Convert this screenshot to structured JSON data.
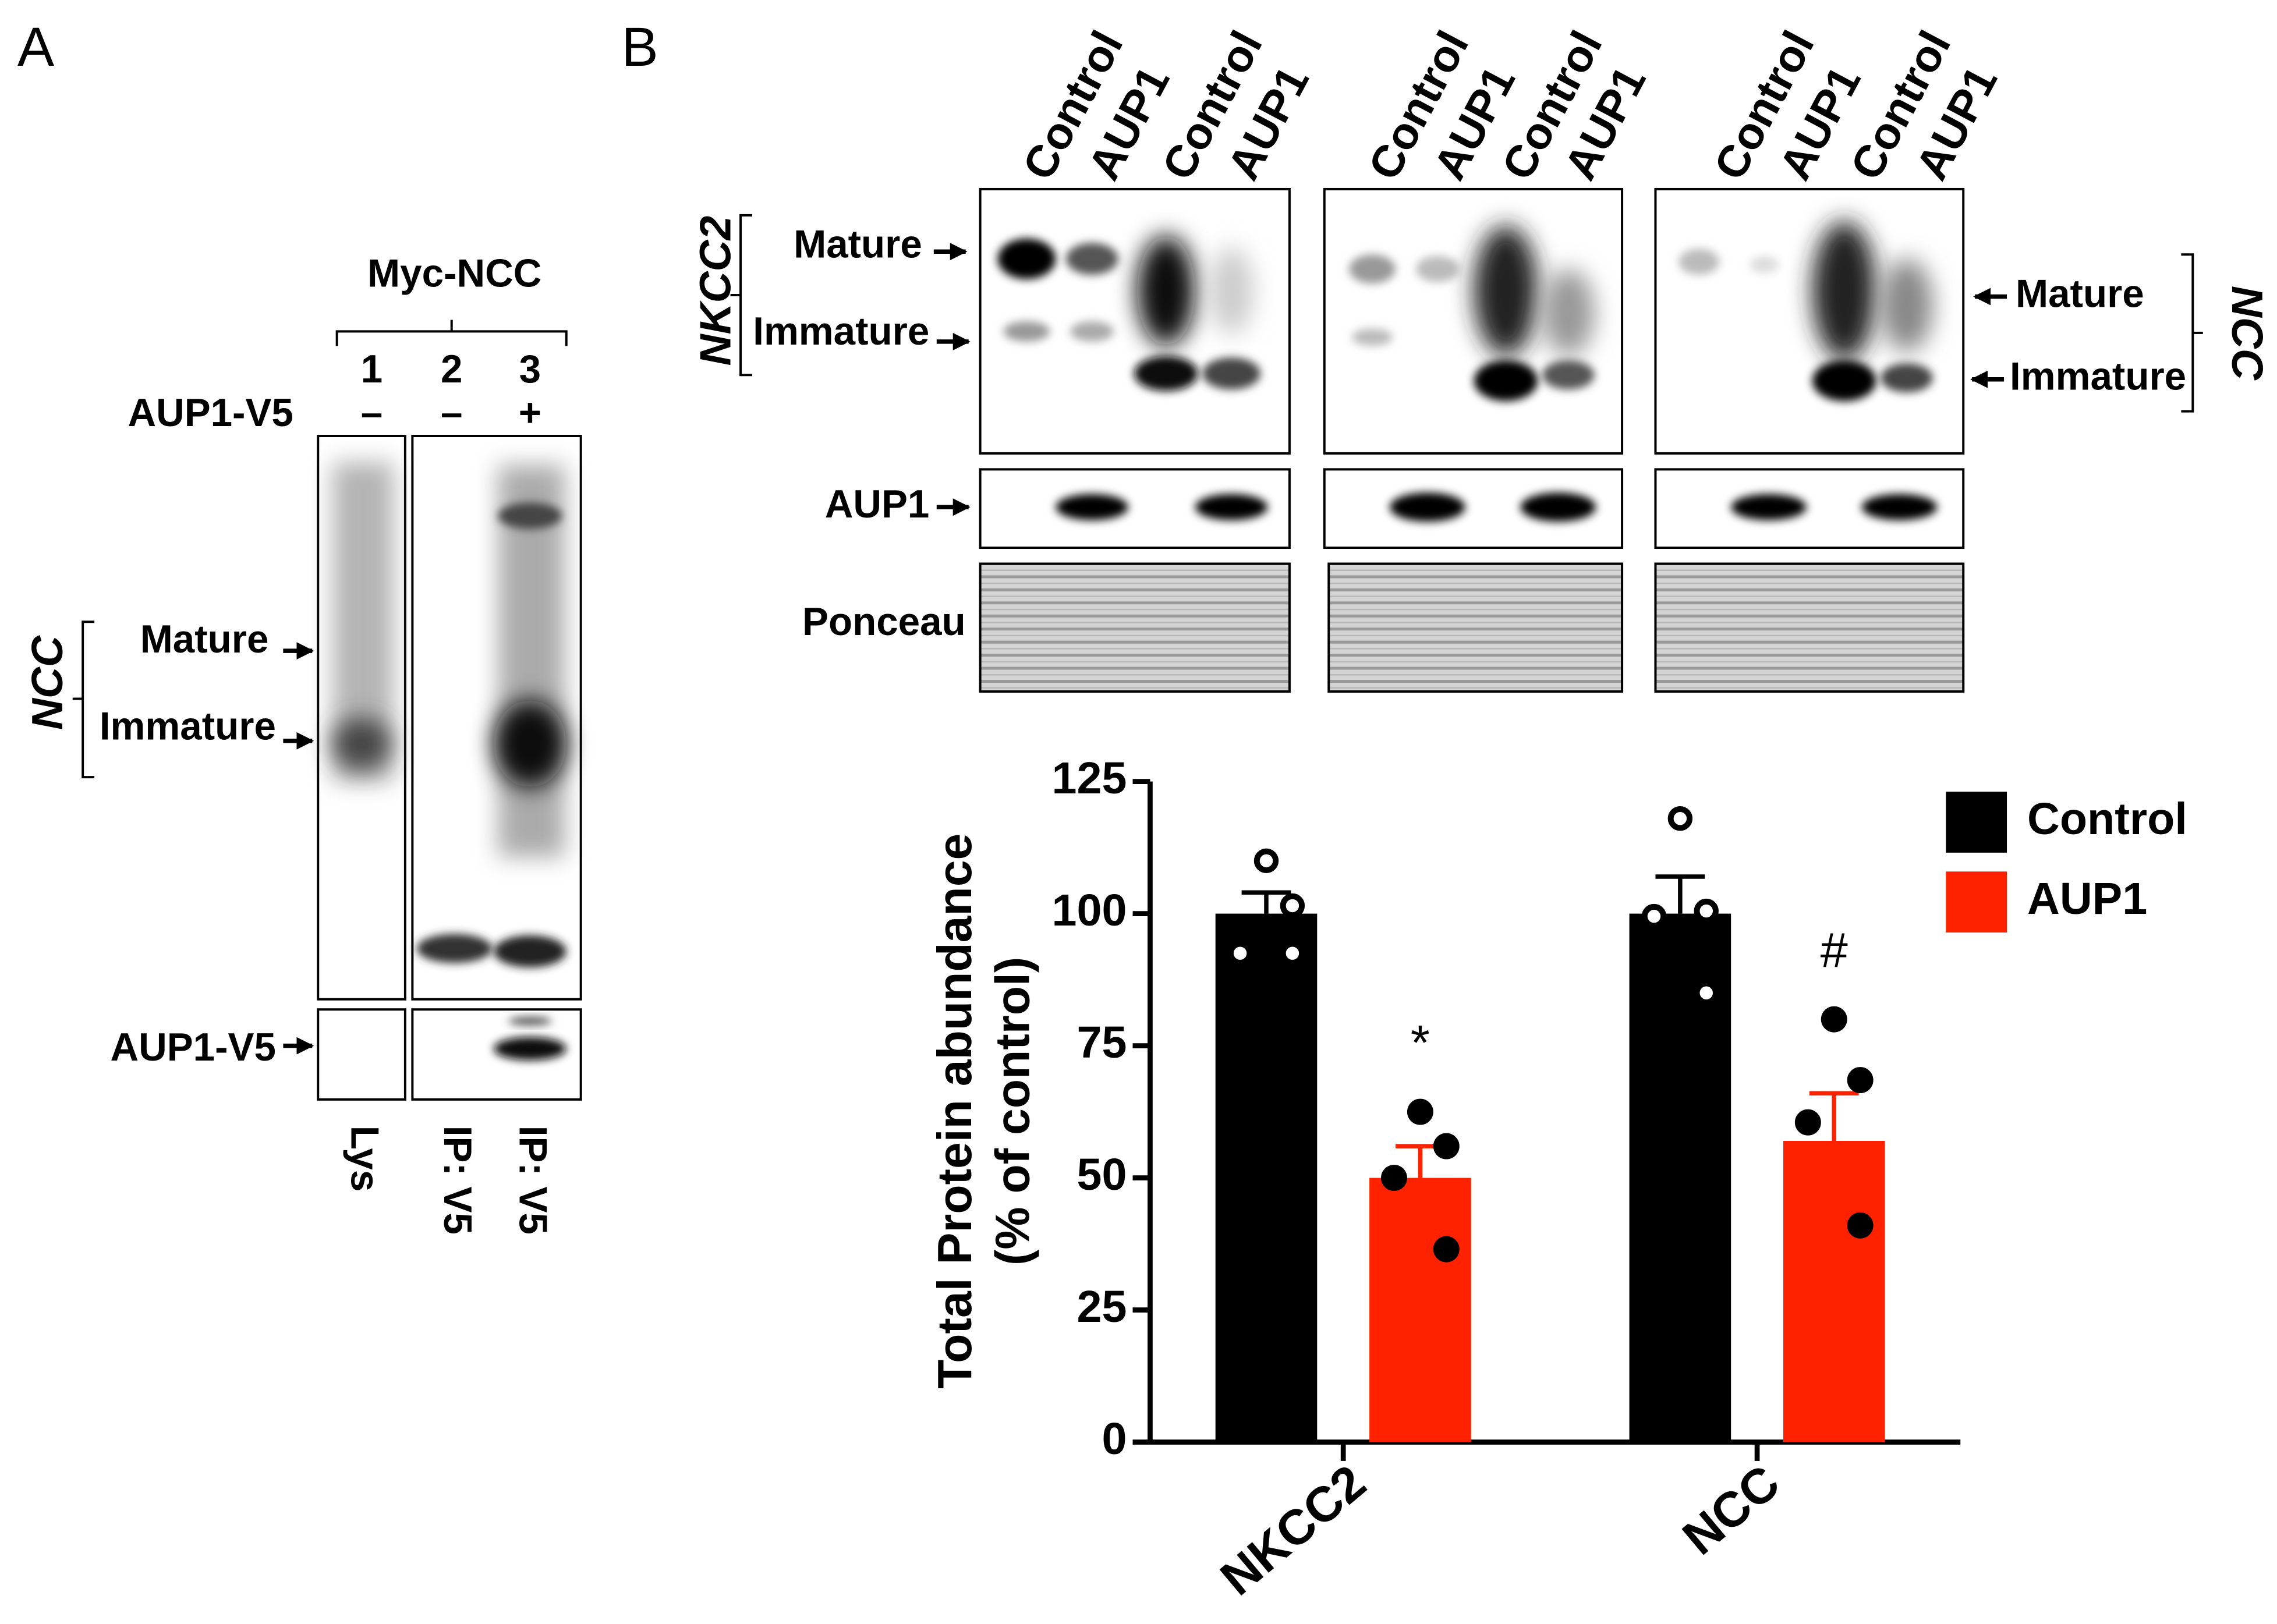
{
  "panel_a": {
    "label": "A",
    "group": "Myc-NCC",
    "lanes": [
      "1",
      "2",
      "3"
    ],
    "row_label": "AUP1-V5",
    "row_signs": [
      "–",
      "–",
      "+"
    ],
    "bracket_label": "NCC",
    "bands": [
      "Mature",
      "Immature"
    ],
    "lower_label": "AUP1-V5",
    "lane_labels": [
      "Lys",
      "IP: V5",
      "IP: V5"
    ]
  },
  "panel_b": {
    "label": "B",
    "lane_headers": [
      "Control",
      "AUP1",
      "Control",
      "AUP1",
      "Control",
      "AUP1",
      "Control",
      "AUP1",
      "Control",
      "AUP1",
      "Control",
      "AUP1"
    ],
    "left_bracket": "NKCC2",
    "left_bands": [
      "Mature",
      "Immature"
    ],
    "right_bands": [
      "Mature",
      "Immature"
    ],
    "right_bracket": "NCC",
    "rows": [
      "AUP1",
      "Ponceau"
    ]
  },
  "chart_data": {
    "type": "bar",
    "y_label": [
      "Total Protein  abundance",
      "(% of control)"
    ],
    "categories": [
      "NKCC2",
      "NCC"
    ],
    "series": [
      {
        "name": "Control",
        "color": "#000000",
        "values": [
          100,
          100
        ],
        "errors": [
          4,
          7
        ],
        "points": [
          [
            110,
            101.5,
            92.5,
            92.5
          ],
          [
            118,
            100.5,
            99.5,
            85
          ]
        ]
      },
      {
        "name": "AUP1",
        "color": "#ff2200",
        "values": [
          50,
          57
        ],
        "errors": [
          6,
          9
        ],
        "points": [
          [
            62.5,
            56,
            50,
            36.5
          ],
          [
            80,
            68.5,
            60.5,
            41
          ]
        ],
        "annotations": [
          "*",
          "#"
        ]
      }
    ],
    "ylim": [
      0,
      125
    ],
    "yticks": [
      0,
      25,
      50,
      75,
      100,
      125
    ],
    "legend": "upper right"
  }
}
